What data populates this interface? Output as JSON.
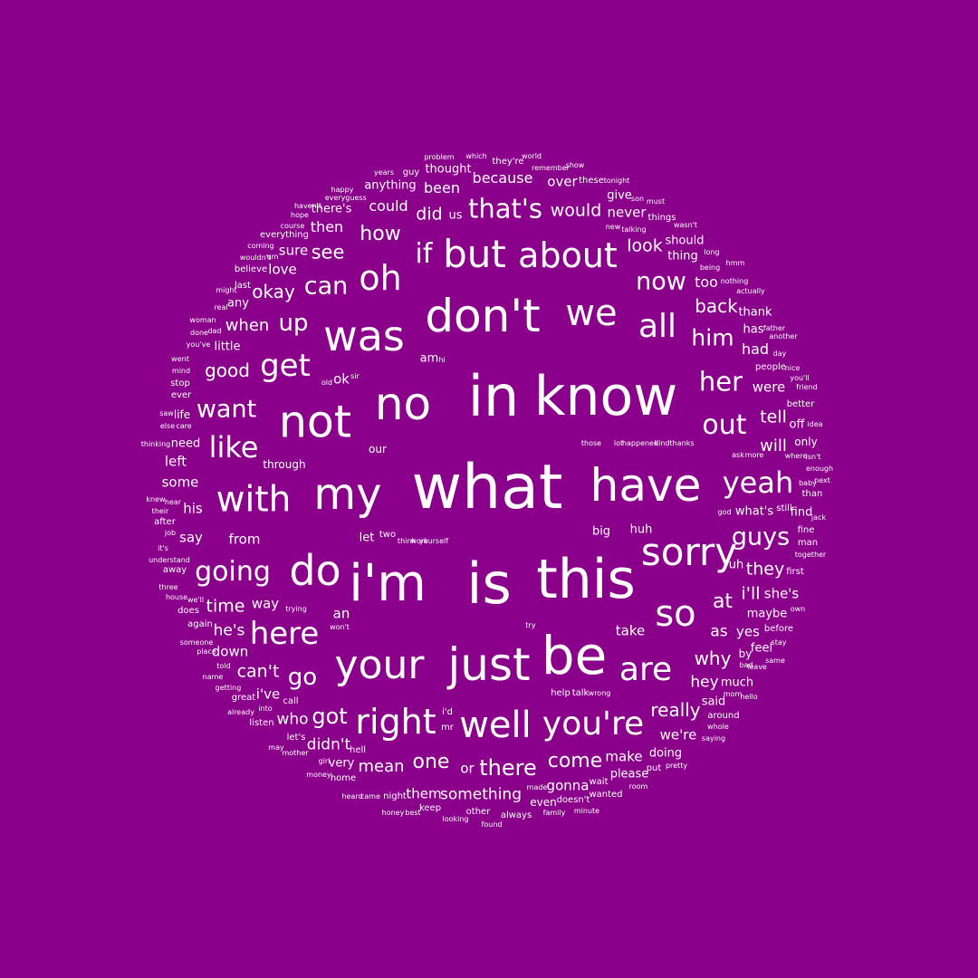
{
  "background_color": "#8B008B",
  "text_color": "#FFFFFF",
  "words": [
    "problem",
    "which",
    "they're",
    "world",
    "thought",
    "years",
    "guy",
    "remember",
    "show",
    "because",
    "happy",
    "over",
    "these",
    "tonight",
    "anything",
    "every",
    "guess",
    "been",
    "give",
    "son",
    "must",
    "haven't",
    "there's",
    "could",
    "that's",
    "would",
    "hope",
    "did",
    "us",
    "never",
    "things",
    "course",
    "then",
    "new",
    "talking",
    "wasn't",
    "everything",
    "how",
    "should",
    "coming",
    "sure",
    "see",
    "if",
    "but",
    "about",
    "look",
    "wouldn't",
    "um",
    "thing",
    "long",
    "believe",
    "love",
    "oh",
    "being",
    "hmm",
    "might",
    "last",
    "okay",
    "can",
    "now",
    "too",
    "nothing",
    "actually",
    "real",
    "any",
    "back",
    "thank",
    "woman",
    "don't",
    "we",
    "all",
    "done",
    "dad",
    "when",
    "up",
    "was",
    "has",
    "father",
    "him",
    "another",
    "you've",
    "little",
    "had",
    "day",
    "went",
    "get",
    "am",
    "hi",
    "people",
    "nice",
    "mind",
    "good",
    "stop",
    "old",
    "ok",
    "sir",
    "her",
    "were",
    "you'll",
    "friend",
    "ever",
    "in",
    "know",
    "no",
    "better",
    "want",
    "not",
    "tell",
    "saw",
    "life",
    "else",
    "care",
    "out",
    "off",
    "idea",
    "only",
    "thinking",
    "need",
    "like",
    "those",
    "lot",
    "happened",
    "kind",
    "thanks",
    "will",
    "our",
    "isn't",
    "left",
    "through",
    "ask",
    "more",
    "where",
    "enough",
    "what",
    "have",
    "yeah",
    "some",
    "my",
    "baby",
    "next",
    "with",
    "than",
    "knew",
    "hear",
    "his",
    "their",
    "god",
    "what's",
    "still",
    "find",
    "jack",
    "after",
    "job",
    "fine",
    "say",
    "from",
    "let",
    "two",
    "think",
    "work",
    "yourself",
    "big",
    "huh",
    "guys",
    "sorry",
    "man",
    "it's",
    "together",
    "understand",
    "away",
    "do",
    "going",
    "they",
    "first",
    "uh",
    "three",
    "i'm",
    "is",
    "this",
    "i'll",
    "she's",
    "house",
    "time",
    "way",
    "we'll",
    "own",
    "does",
    "trying",
    "maybe",
    "at",
    "an",
    "again",
    "so",
    "he's",
    "here",
    "before",
    "won't",
    "try",
    "as",
    "yes",
    "someone",
    "take",
    "stay",
    "place",
    "down",
    "feel",
    "why",
    "told",
    "by",
    "same",
    "just",
    "be",
    "your",
    "name",
    "bad",
    "leave",
    "can't",
    "are",
    "go",
    "getting",
    "help",
    "talk",
    "wrong",
    "hey",
    "much",
    "great",
    "i've",
    "mom",
    "hello",
    "call",
    "into",
    "said",
    "already",
    "got",
    "really",
    "around",
    "right",
    "who",
    "i'd",
    "listen",
    "well",
    "mr",
    "you're",
    "whole",
    "we're",
    "saying",
    "let's",
    "didn't",
    "may",
    "mother",
    "hell",
    "doing",
    "make",
    "girl",
    "very",
    "pretty",
    "one",
    "mean",
    "money",
    "or",
    "there",
    "come",
    "home",
    "put",
    "please",
    "made",
    "wait",
    "gonna",
    "night",
    "them",
    "something",
    "heard",
    "came",
    "wanted",
    "room",
    "even",
    "doesn't",
    "keep",
    "best",
    "honey",
    "family",
    "other",
    "minute",
    "always",
    "looking",
    "found"
  ]
}
